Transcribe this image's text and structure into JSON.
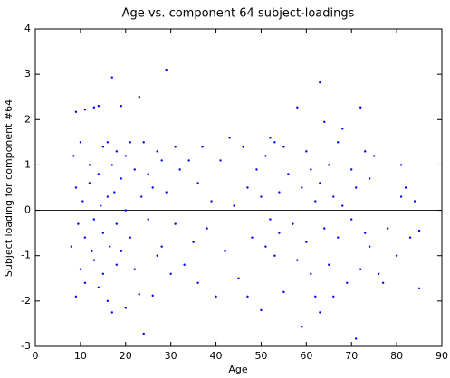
{
  "chart_data": {
    "type": "scatter",
    "title": "Age vs. component 64 subject-loadings",
    "xlabel": "Age",
    "ylabel": "Subject loading for component #64",
    "color": "#0000ff",
    "xlim": [
      0,
      90
    ],
    "xticks": [
      0,
      10,
      20,
      30,
      40,
      50,
      60,
      70,
      80,
      90
    ],
    "ylim": [
      -3,
      4
    ],
    "yticks": [
      -3,
      -2,
      -1,
      0,
      1,
      2,
      3,
      4
    ],
    "hlines": [
      0
    ],
    "x": [
      8,
      8.5,
      9,
      9,
      9.5,
      9,
      10,
      10,
      10.5,
      11,
      11,
      11,
      12,
      12,
      12.5,
      13,
      13,
      13,
      14,
      14,
      14,
      14.5,
      15,
      15,
      15,
      16,
      16,
      16,
      16.5,
      17,
      17,
      17,
      17.5,
      18,
      18,
      18,
      19,
      19,
      19,
      20,
      20,
      20,
      21,
      21,
      22,
      22,
      23,
      23,
      23.5,
      24,
      24,
      25,
      25,
      26,
      26,
      27,
      27,
      28,
      28,
      29,
      29,
      30,
      31,
      31,
      32,
      33,
      34,
      35,
      36,
      36,
      37,
      38,
      39,
      40,
      41,
      42,
      43,
      44,
      45,
      46,
      47,
      47,
      48,
      49,
      50,
      50,
      51,
      51,
      52,
      52,
      53,
      53,
      54,
      54,
      55,
      55,
      56,
      57,
      58,
      58,
      59,
      59,
      60,
      60,
      61,
      61,
      62,
      62,
      63,
      63,
      63,
      64,
      64,
      65,
      65,
      66,
      66,
      67,
      67,
      68,
      68,
      69,
      70,
      70,
      71,
      71,
      72,
      72,
      73,
      73,
      74,
      74,
      75,
      76,
      77,
      78,
      80,
      81,
      81,
      82,
      83,
      84,
      85,
      85
    ],
    "y": [
      -0.8,
      1.2,
      2.17,
      0.5,
      -0.3,
      -1.9,
      1.5,
      -1.3,
      0.2,
      2.22,
      -0.6,
      -1.6,
      1.0,
      0.6,
      -0.9,
      2.27,
      -0.2,
      -1.1,
      2.3,
      0.8,
      -1.7,
      0.1,
      1.4,
      -0.5,
      -1.4,
      1.5,
      0.3,
      -2.0,
      -0.8,
      2.93,
      1.0,
      -2.25,
      0.4,
      1.3,
      -0.3,
      -1.2,
      2.3,
      0.7,
      -0.9,
      1.2,
      -2.15,
      0.0,
      1.5,
      -0.6,
      0.9,
      -1.3,
      2.5,
      -1.85,
      0.3,
      -2.72,
      1.5,
      0.8,
      -0.2,
      -1.88,
      0.5,
      1.3,
      -1.0,
      1.1,
      -0.8,
      3.1,
      0.4,
      -1.4,
      1.4,
      -0.3,
      0.9,
      -1.2,
      1.1,
      -0.7,
      0.6,
      -1.6,
      1.4,
      -0.4,
      0.2,
      -1.9,
      1.1,
      -0.9,
      1.6,
      0.1,
      -1.5,
      1.4,
      -1.9,
      0.5,
      -0.6,
      0.9,
      -2.2,
      0.3,
      1.2,
      -0.8,
      1.6,
      -0.2,
      1.5,
      -1.0,
      0.4,
      -0.5,
      1.4,
      -1.8,
      0.8,
      -0.3,
      2.27,
      -1.1,
      -2.57,
      0.5,
      1.3,
      -0.7,
      0.9,
      -1.4,
      0.2,
      -1.9,
      2.82,
      -2.25,
      0.6,
      1.95,
      -0.4,
      1.0,
      -1.2,
      0.3,
      -1.9,
      1.5,
      -0.6,
      1.8,
      0.1,
      -1.6,
      0.9,
      -0.2,
      -2.83,
      0.5,
      2.27,
      -1.3,
      1.3,
      -0.5,
      0.7,
      -0.8,
      1.2,
      -1.4,
      -1.6,
      -0.4,
      -1.0,
      1.0,
      0.3,
      0.5,
      -0.6,
      0.2,
      -1.72,
      -0.45
    ]
  }
}
